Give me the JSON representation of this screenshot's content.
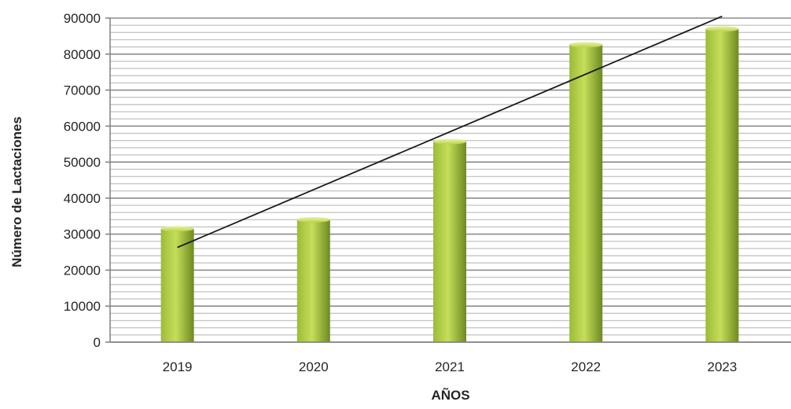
{
  "chart_data": {
    "type": "bar",
    "title": "",
    "xlabel": "AÑOS",
    "ylabel": "Número de Lactaciones",
    "categories": [
      "2019",
      "2020",
      "2021",
      "2022",
      "2023"
    ],
    "values": [
      31500,
      34000,
      55700,
      82600,
      87000
    ],
    "ylim": [
      0,
      90000
    ],
    "yticks": [
      0,
      10000,
      20000,
      30000,
      40000,
      50000,
      60000,
      70000,
      80000,
      90000
    ],
    "ytick_labels": [
      "0",
      "10000",
      "20000",
      "30000",
      "40000",
      "50000",
      "60000",
      "70000",
      "80000",
      "90000"
    ],
    "grid": true,
    "minor_grid_step": 2000,
    "legend": "none",
    "trendline": {
      "type": "linear",
      "start": 26300,
      "end": 90500
    },
    "colors": {
      "bar_light": "#c5de5a",
      "bar_mid": "#9dbb37",
      "bar_dark": "#6d8a1f",
      "grid_major": "#8c8c8c",
      "grid_minor": "#c8c8c8",
      "trendline": "#1a1a1a"
    }
  }
}
